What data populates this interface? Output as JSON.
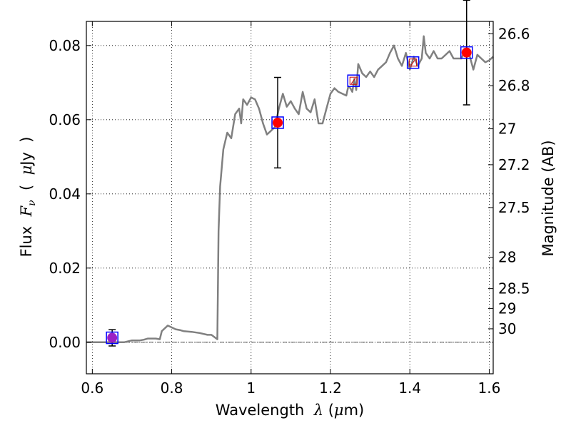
{
  "chart_data": {
    "type": "scatter",
    "title": "",
    "xlabel": {
      "prefix": "Wavelength  ",
      "symbol": "λ",
      "suffix": " (",
      "mu": "μ",
      "unit": "m)"
    },
    "ylabel": {
      "prefix": "Flux  ",
      "symbol": "F",
      "sub": "ν",
      "mid": "  (  ",
      "mu": "μ",
      "unit": "Jy  )"
    },
    "y2label": "Magnitude (AB)",
    "xlim": [
      0.585,
      1.61
    ],
    "ylim": [
      -0.0085,
      0.0865
    ],
    "x_ticks": [
      {
        "value": 0.6,
        "label": "0.6"
      },
      {
        "value": 0.8,
        "label": "0.8"
      },
      {
        "value": 1.0,
        "label": "1"
      },
      {
        "value": 1.2,
        "label": "1.2"
      },
      {
        "value": 1.4,
        "label": "1.4"
      },
      {
        "value": 1.6,
        "label": "1.6"
      }
    ],
    "y_ticks": [
      {
        "value": 0.0,
        "label": "0.00"
      },
      {
        "value": 0.02,
        "label": "0.02"
      },
      {
        "value": 0.04,
        "label": "0.04"
      },
      {
        "value": 0.06,
        "label": "0.06"
      },
      {
        "value": 0.08,
        "label": "0.08"
      }
    ],
    "y2_ticks": [
      {
        "mag": 26.6,
        "label": "26.6"
      },
      {
        "mag": 26.8,
        "label": "26.8"
      },
      {
        "mag": 27.0,
        "label": "27"
      },
      {
        "mag": 27.2,
        "label": "27.2"
      },
      {
        "mag": 27.5,
        "label": "27.5"
      },
      {
        "mag": 28.0,
        "label": "28"
      },
      {
        "mag": 28.5,
        "label": "28.5"
      },
      {
        "mag": 29.0,
        "label": "29"
      },
      {
        "mag": 30.0,
        "label": "30"
      }
    ],
    "grid": true,
    "zero_line": true,
    "model_spectrum": {
      "color": "#808080",
      "x": [
        0.585,
        0.64,
        0.66,
        0.68,
        0.7,
        0.72,
        0.73,
        0.74,
        0.75,
        0.76,
        0.77,
        0.775,
        0.78,
        0.79,
        0.8,
        0.81,
        0.82,
        0.83,
        0.85,
        0.87,
        0.89,
        0.9,
        0.915,
        0.918,
        0.922,
        0.93,
        0.94,
        0.95,
        0.96,
        0.97,
        0.975,
        0.98,
        0.99,
        1.0,
        1.01,
        1.02,
        1.03,
        1.04,
        1.05,
        1.06,
        1.07,
        1.08,
        1.09,
        1.1,
        1.11,
        1.12,
        1.13,
        1.14,
        1.15,
        1.16,
        1.17,
        1.18,
        1.19,
        1.2,
        1.21,
        1.22,
        1.23,
        1.24,
        1.245,
        1.25,
        1.255,
        1.26,
        1.265,
        1.27,
        1.28,
        1.29,
        1.3,
        1.31,
        1.32,
        1.33,
        1.34,
        1.35,
        1.36,
        1.37,
        1.38,
        1.39,
        1.4,
        1.41,
        1.42,
        1.43,
        1.435,
        1.44,
        1.45,
        1.46,
        1.47,
        1.48,
        1.49,
        1.5,
        1.51,
        1.52,
        1.53,
        1.54,
        1.55,
        1.56,
        1.57,
        1.58,
        1.59,
        1.6,
        1.61
      ],
      "y": [
        0.0,
        0.0,
        0.0,
        0.0,
        0.0005,
        0.0005,
        0.0007,
        0.001,
        0.001,
        0.001,
        0.0008,
        0.003,
        0.0035,
        0.0045,
        0.004,
        0.0035,
        0.0033,
        0.003,
        0.0028,
        0.0025,
        0.002,
        0.002,
        0.0008,
        0.03,
        0.042,
        0.052,
        0.0565,
        0.055,
        0.0615,
        0.063,
        0.059,
        0.0655,
        0.064,
        0.066,
        0.0655,
        0.063,
        0.059,
        0.056,
        0.057,
        0.058,
        0.063,
        0.067,
        0.0635,
        0.065,
        0.063,
        0.0615,
        0.0675,
        0.063,
        0.062,
        0.0655,
        0.059,
        0.059,
        0.063,
        0.067,
        0.0685,
        0.0675,
        0.067,
        0.0665,
        0.069,
        0.0685,
        0.0675,
        0.071,
        0.068,
        0.075,
        0.0725,
        0.0715,
        0.073,
        0.0715,
        0.0735,
        0.0745,
        0.0755,
        0.078,
        0.08,
        0.0765,
        0.0745,
        0.078,
        0.0735,
        0.077,
        0.0745,
        0.0765,
        0.0825,
        0.078,
        0.0765,
        0.0785,
        0.0765,
        0.0765,
        0.0775,
        0.0785,
        0.0765,
        0.0765,
        0.0765,
        0.079,
        0.0775,
        0.0735,
        0.0775,
        0.0765,
        0.0755,
        0.076,
        0.077
      ]
    },
    "points": [
      {
        "name": "obs-0.65",
        "x": 0.65,
        "y": 0.0012,
        "yerr": 0.0022,
        "fill": "#9b1fc4",
        "box": true
      },
      {
        "name": "obs-1.06",
        "x": 1.067,
        "y": 0.0592,
        "yerr": 0.0122,
        "fill": "#ff0000",
        "box": true
      },
      {
        "name": "obs-1.26",
        "x": 1.258,
        "y": 0.0705,
        "yerr": null,
        "fill": null,
        "box": true
      },
      {
        "name": "obs-1.40",
        "x": 1.408,
        "y": 0.0754,
        "yerr": null,
        "fill": null,
        "box": true
      },
      {
        "name": "obs-1.54",
        "x": 1.543,
        "y": 0.0781,
        "yerr": 0.0141,
        "fill": "#ff0000",
        "box": true
      }
    ],
    "colors": {
      "box": "#0000ff",
      "errorbar": "#000000",
      "inner_mark": "#cc0000",
      "zero_line": "#555555"
    }
  }
}
